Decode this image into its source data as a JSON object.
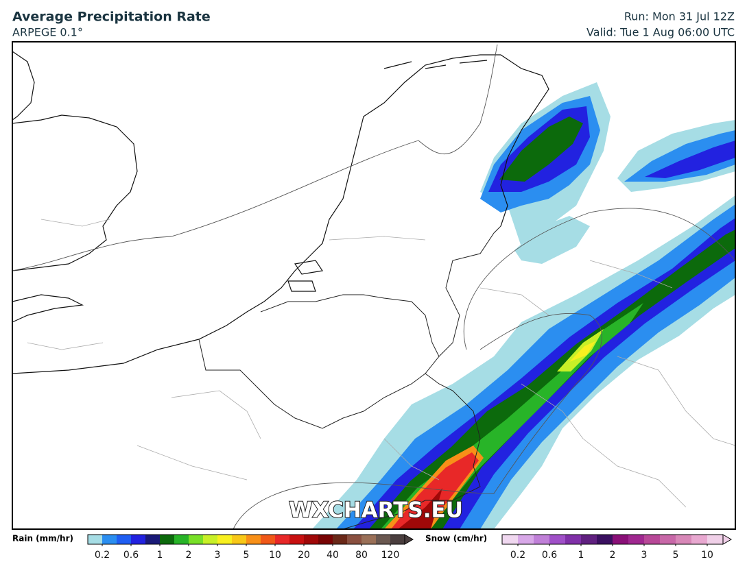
{
  "header": {
    "title": "Average Precipitation Rate",
    "model": "ARPEGE 0.1°",
    "run": "Run: Mon 31 Jul 12Z",
    "valid": "Valid: Tue 1 Aug 06:00 UTC"
  },
  "map": {
    "watermark": "WXCHARTS.EU"
  },
  "legend": {
    "rain": {
      "label": "Rain (mm/hr)",
      "ticks": [
        0.2,
        0.6,
        1,
        2,
        3,
        5,
        10,
        20,
        40,
        80,
        120
      ],
      "colors": [
        "#a6dde5",
        "#2b8ef0",
        "#1f5ef2",
        "#2222e0",
        "#1a1a78",
        "#0c6a0c",
        "#28b428",
        "#78e028",
        "#c8f028",
        "#f8f020",
        "#f8c818",
        "#f89018",
        "#f05818",
        "#e82828",
        "#c81010",
        "#a00808",
        "#780404",
        "#6a2818",
        "#8a5040",
        "#9a7058",
        "#6a5850",
        "#4a3e3e"
      ]
    },
    "snow": {
      "label": "Snow (cm/hr)",
      "ticks": [
        0.2,
        0.6,
        1,
        2,
        3,
        5,
        10
      ],
      "colors": [
        "#f0d8f0",
        "#d8a8e8",
        "#c080d8",
        "#a050c8",
        "#8030a8",
        "#602080",
        "#3a1060",
        "#8a1078",
        "#a02890",
        "#b84898",
        "#c868a8",
        "#d888b8",
        "#e8a8d0",
        "#f0d0e8"
      ]
    }
  }
}
